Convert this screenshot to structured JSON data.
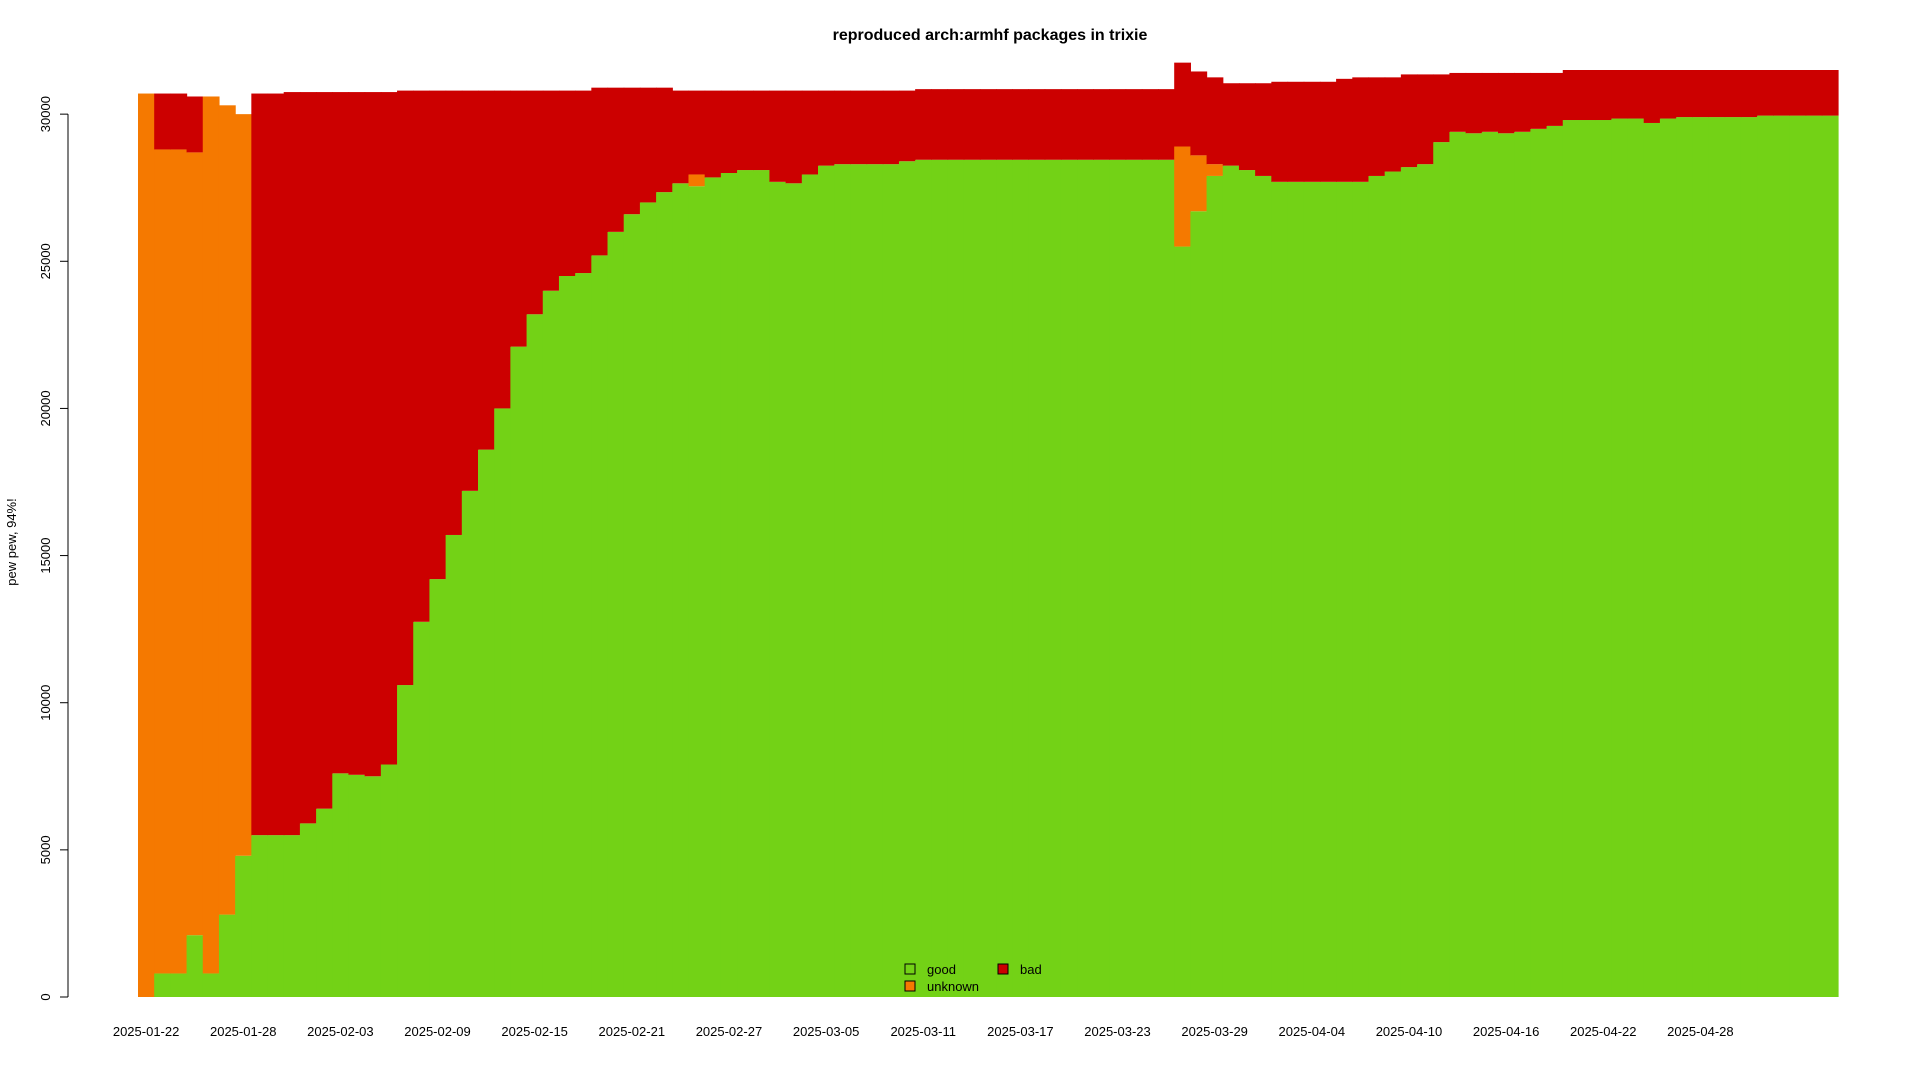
{
  "chart_data": {
    "type": "area",
    "title": "reproduced arch:armhf packages in trixie",
    "xlabel": "",
    "ylabel": "pew pew, 94%!",
    "ylim": [
      0,
      31500
    ],
    "yticks": [
      0,
      5000,
      10000,
      15000,
      20000,
      25000,
      30000
    ],
    "xticks": [
      "2025-01-22",
      "2025-01-28",
      "2025-02-03",
      "2025-02-09",
      "2025-02-15",
      "2025-02-21",
      "2025-02-27",
      "2025-03-05",
      "2025-03-11",
      "2025-03-17",
      "2025-03-23",
      "2025-03-29",
      "2025-04-04",
      "2025-04-10",
      "2025-04-16",
      "2025-04-22",
      "2025-04-28"
    ],
    "x_start": "2025-01-22",
    "x_end": "2025-05-04",
    "stacking": "good, unknown, bad (bottom to top)",
    "colors": {
      "good": "#73d216",
      "unknown": "#f57900",
      "bad": "#cc0000"
    },
    "legend": {
      "position": "bottom-center",
      "entries": [
        {
          "name": "good",
          "color": "#73d216"
        },
        {
          "name": "unknown",
          "color": "#f57900"
        },
        {
          "name": "bad",
          "color": "#cc0000"
        }
      ]
    },
    "series": [
      {
        "name": "good",
        "values": [
          0,
          800,
          800,
          2100,
          800,
          2800,
          4800,
          5500,
          5500,
          5500,
          5900,
          6400,
          7600,
          7550,
          7500,
          7900,
          10600,
          12750,
          14200,
          15700,
          17200,
          18600,
          20000,
          22100,
          23200,
          24000,
          24500,
          24600,
          25200,
          26000,
          26600,
          27000,
          27350,
          27650,
          27550,
          27850,
          28000,
          28100,
          28100,
          27700,
          27650,
          27950,
          28250,
          28300,
          28300,
          28300,
          28300,
          28400,
          28450,
          28450,
          28450,
          28450,
          28450,
          28450,
          28450,
          28450,
          28450,
          28450,
          28450,
          28450,
          28450,
          28450,
          28450,
          28450,
          25500,
          26700,
          27900,
          28250,
          28100,
          27900,
          27700,
          27700,
          27700,
          27700,
          27700,
          27700,
          27900,
          28050,
          28200,
          28300,
          29050,
          29400,
          29350,
          29400,
          29350,
          29400,
          29500,
          29600,
          29800,
          29800,
          29800,
          29850,
          29850,
          29700,
          29850,
          29900,
          29900,
          29900,
          29900,
          29900,
          29950,
          29950,
          29950,
          29950,
          29950
        ]
      },
      {
        "name": "unknown",
        "values": [
          30700,
          28000,
          28000,
          26600,
          29800,
          27500,
          25200,
          0,
          0,
          0,
          0,
          0,
          0,
          0,
          0,
          0,
          0,
          0,
          0,
          0,
          0,
          0,
          0,
          0,
          0,
          0,
          0,
          0,
          0,
          0,
          0,
          0,
          0,
          0,
          400,
          0,
          0,
          0,
          0,
          0,
          0,
          0,
          0,
          0,
          0,
          0,
          0,
          0,
          0,
          0,
          0,
          0,
          0,
          0,
          0,
          0,
          0,
          0,
          0,
          0,
          0,
          0,
          0,
          0,
          3400,
          1900,
          400,
          0,
          0,
          0,
          0,
          0,
          0,
          0,
          0,
          0,
          0,
          0,
          0,
          0,
          0,
          0,
          0,
          0,
          0,
          0,
          0,
          0,
          0,
          0,
          0,
          0,
          0,
          0,
          0,
          0,
          0,
          0,
          0,
          0,
          0,
          0,
          0,
          0,
          0
        ]
      },
      {
        "name": "bad",
        "values": [
          0,
          1900,
          1900,
          1900,
          0,
          0,
          0,
          25200,
          25200,
          25250,
          24850,
          24350,
          23150,
          23200,
          23250,
          22850,
          20200,
          18050,
          16600,
          15100,
          13600,
          12200,
          10800,
          8700,
          7600,
          6800,
          6300,
          6200,
          5700,
          4900,
          4300,
          3900,
          3550,
          3150,
          2850,
          2950,
          2800,
          2700,
          2700,
          3100,
          3150,
          2850,
          2550,
          2500,
          2500,
          2500,
          2500,
          2400,
          2400,
          2400,
          2400,
          2400,
          2400,
          2400,
          2400,
          2400,
          2400,
          2400,
          2400,
          2400,
          2400,
          2400,
          2400,
          2400,
          2850,
          2850,
          2950,
          2800,
          2950,
          3150,
          3400,
          3400,
          3400,
          3400,
          3500,
          3550,
          3350,
          3200,
          3150,
          3050,
          2300,
          2000,
          2050,
          2000,
          2050,
          2000,
          1900,
          1800,
          1700,
          1700,
          1700,
          1650,
          1650,
          1800,
          1650,
          1600,
          1600,
          1600,
          1600,
          1600,
          1550,
          1550,
          1550,
          1550,
          1550
        ]
      }
    ]
  }
}
